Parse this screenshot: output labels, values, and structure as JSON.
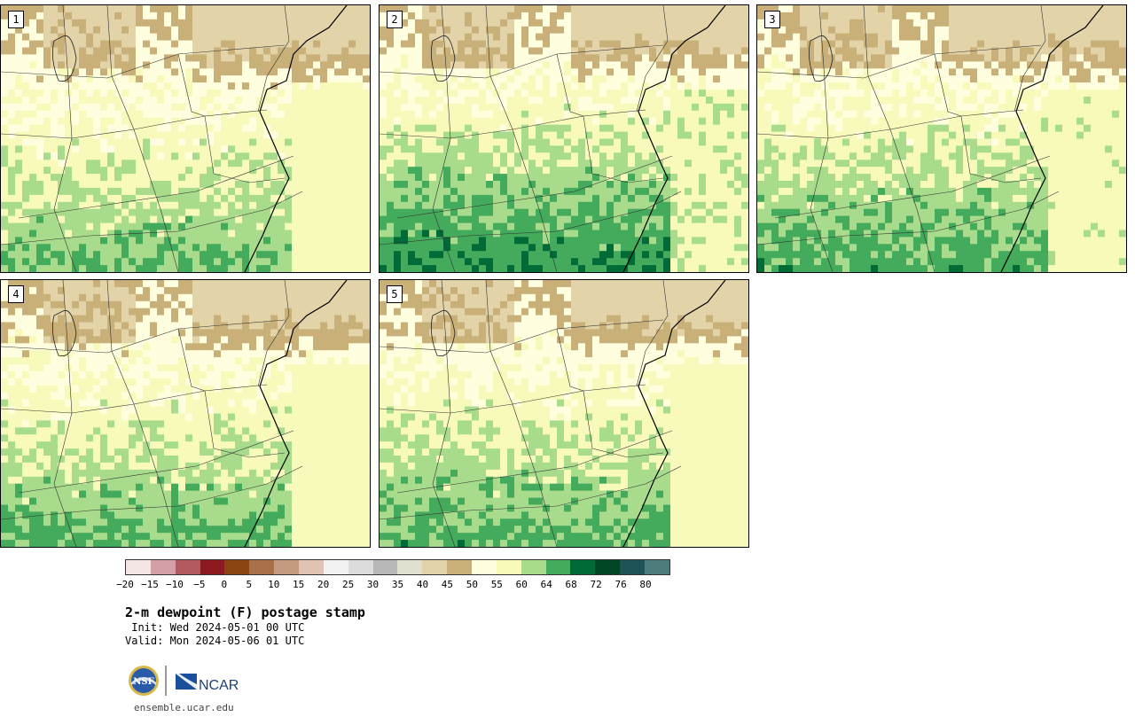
{
  "panels": [
    {
      "label": "1",
      "seed": 11,
      "moist": 0.35
    },
    {
      "label": "2",
      "seed": 23,
      "moist": 0.75
    },
    {
      "label": "3",
      "seed": 37,
      "moist": 0.55
    },
    {
      "label": "4",
      "seed": 41,
      "moist": 0.45
    },
    {
      "label": "5",
      "seed": 53,
      "moist": 0.5
    }
  ],
  "legend": {
    "colors": [
      "#f5e6e6",
      "#d4a0a6",
      "#b25a60",
      "#8c1820",
      "#8b4513",
      "#a8714a",
      "#c69a80",
      "#e1c3b4",
      "#f2f2f2",
      "#dcdcdc",
      "#b8b8b8",
      "#e0e0d0",
      "#e3d3a8",
      "#c9b078",
      "#ffffe0",
      "#f7fabb",
      "#a8dc8c",
      "#44aa5c",
      "#006b36",
      "#004524",
      "#1d5256",
      "#4e7b7c"
    ],
    "ticks": [
      "−20",
      "−15",
      "−10",
      "−5",
      "0",
      "5",
      "10",
      "15",
      "20",
      "25",
      "30",
      "35",
      "40",
      "45",
      "50",
      "55",
      "60",
      "64",
      "68",
      "72",
      "76",
      "80"
    ]
  },
  "title": "2-m dewpoint (F) postage stamp",
  "init": " Init: Wed 2024-05-01 00 UTC",
  "valid": "Valid: Mon 2024-05-06 01 UTC",
  "logos": {
    "nsf": "NSF",
    "ncar": "NCAR"
  },
  "site": "ensemble.ucar.edu"
}
